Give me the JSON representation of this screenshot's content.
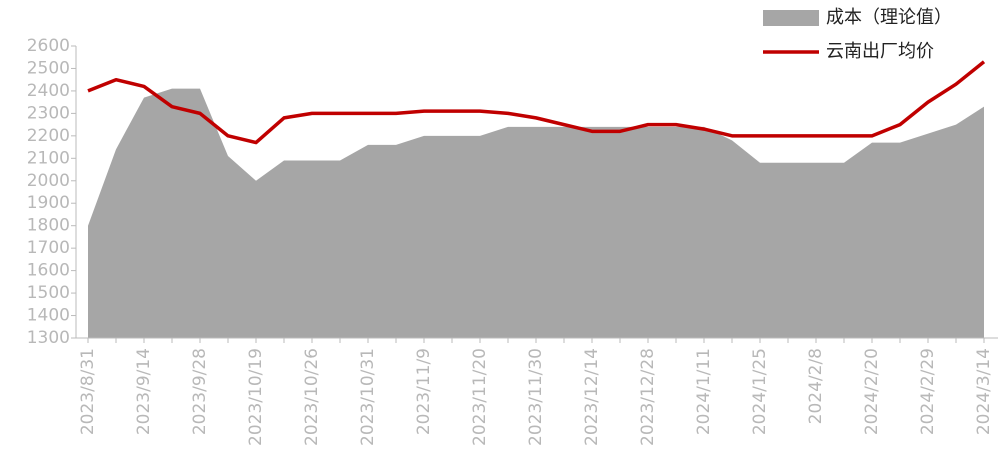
{
  "chart_data": {
    "type": "area_line",
    "categories": [
      "2023/8/31",
      null,
      "2023/9/14",
      null,
      "2023/9/28",
      null,
      "2023/10/19",
      null,
      "2023/10/26",
      null,
      "2023/10/31",
      null,
      "2023/11/9",
      null,
      "2023/11/20",
      null,
      "2023/11/30",
      null,
      "2023/12/14",
      null,
      "2023/12/28",
      null,
      "2024/1/11",
      null,
      "2024/1/25",
      null,
      "2024/2/8",
      null,
      "2024/2/20",
      null,
      "2024/2/29",
      null,
      "2024/3/14"
    ],
    "series": [
      {
        "name": "成本（理论值）",
        "color": "#a6a6a6",
        "kind": "area",
        "values": [
          1800,
          2140,
          2370,
          2410,
          2410,
          2110,
          2000,
          2090,
          2090,
          2090,
          2160,
          2160,
          2200,
          2200,
          2200,
          2240,
          2240,
          2240,
          2240,
          2240,
          2240,
          2240,
          2240,
          2180,
          2080,
          2080,
          2080,
          2080,
          2170,
          2170,
          2210,
          2250,
          2330
        ]
      },
      {
        "name": "云南出厂均价",
        "color": "#c00000",
        "kind": "line",
        "values": [
          2400,
          2450,
          2420,
          2330,
          2300,
          2200,
          2170,
          2280,
          2300,
          2300,
          2300,
          2300,
          2310,
          2310,
          2310,
          2300,
          2280,
          2250,
          2220,
          2220,
          2250,
          2250,
          2230,
          2200,
          2200,
          2200,
          2200,
          2200,
          2200,
          2250,
          2350,
          2430,
          2530
        ]
      }
    ],
    "ylim": [
      1300,
      2600
    ],
    "yticks": [
      1300,
      1400,
      1500,
      1600,
      1700,
      1800,
      1900,
      2000,
      2100,
      2200,
      2300,
      2400,
      2500,
      2600
    ],
    "legend": "top-right"
  }
}
